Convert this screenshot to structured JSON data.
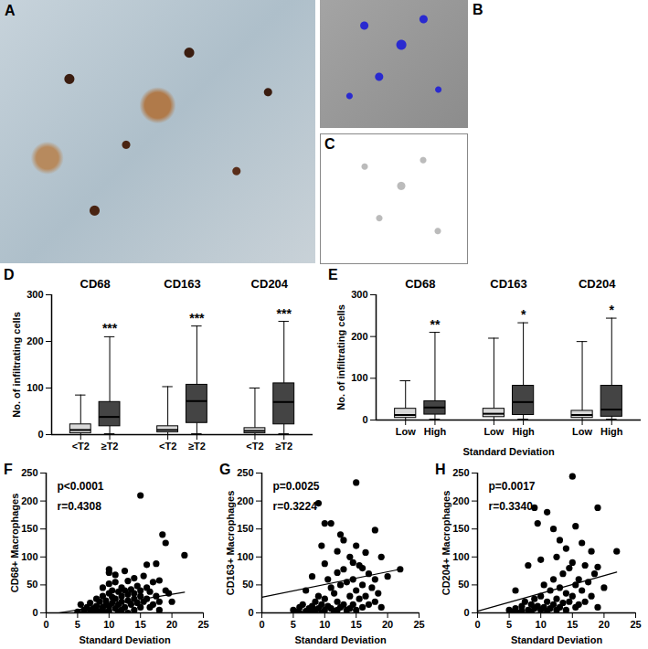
{
  "chart_data": [
    {
      "type": "image",
      "panel": "A"
    },
    {
      "type": "image",
      "panel": "B"
    },
    {
      "type": "image",
      "panel": "C"
    },
    {
      "type": "box",
      "panel": "D",
      "ylabel": "No. of infiltrating cells",
      "ylim": [
        0,
        300
      ],
      "yticks": [
        0,
        100,
        200,
        300
      ],
      "categories": [
        "<T2",
        "≥T2"
      ],
      "colors": [
        "#d9d9d9",
        "#444444"
      ],
      "groups": [
        {
          "name": "CD68",
          "boxes": [
            {
              "min": 0,
              "q1": 3,
              "median": 10,
              "q3": 22,
              "max": 85
            },
            {
              "min": 2,
              "q1": 18,
              "median": 38,
              "q3": 70,
              "max": 210,
              "annotation": "***"
            }
          ]
        },
        {
          "name": "CD163",
          "boxes": [
            {
              "min": 0,
              "q1": 5,
              "median": 10,
              "q3": 18,
              "max": 103
            },
            {
              "min": 2,
              "q1": 25,
              "median": 72,
              "q3": 107,
              "max": 233,
              "annotation": "***"
            }
          ]
        },
        {
          "name": "CD204",
          "boxes": [
            {
              "min": 0,
              "q1": 3,
              "median": 8,
              "q3": 14,
              "max": 100
            },
            {
              "min": 2,
              "q1": 22,
              "median": 70,
              "q3": 110,
              "max": 243,
              "annotation": "***"
            }
          ]
        }
      ]
    },
    {
      "type": "box",
      "panel": "E",
      "ylabel": "No. of infiltrating cells",
      "xlabel": "Standard Deviation",
      "ylim": [
        0,
        300
      ],
      "yticks": [
        0,
        100,
        200,
        300
      ],
      "categories": [
        "Low",
        "High"
      ],
      "colors": [
        "#d9d9d9",
        "#444444"
      ],
      "groups": [
        {
          "name": "CD68",
          "boxes": [
            {
              "min": 0,
              "q1": 5,
              "median": 12,
              "q3": 27,
              "max": 94
            },
            {
              "min": 2,
              "q1": 13,
              "median": 30,
              "q3": 45,
              "max": 210,
              "annotation": "**"
            }
          ]
        },
        {
          "name": "CD163",
          "boxes": [
            {
              "min": 0,
              "q1": 7,
              "median": 15,
              "q3": 27,
              "max": 196
            },
            {
              "min": 2,
              "q1": 12,
              "median": 43,
              "q3": 82,
              "max": 233,
              "annotation": "*"
            }
          ]
        },
        {
          "name": "CD204",
          "boxes": [
            {
              "min": 0,
              "q1": 5,
              "median": 12,
              "q3": 22,
              "max": 188
            },
            {
              "min": 2,
              "q1": 8,
              "median": 25,
              "q3": 82,
              "max": 244,
              "annotation": "*"
            }
          ]
        }
      ]
    },
    {
      "type": "scatter",
      "panel": "F",
      "xlabel": "Standard Deviation",
      "ylabel": "CD68+ Macrophages",
      "xlim": [
        0,
        25
      ],
      "xticks": [
        0,
        5,
        10,
        15,
        20,
        25
      ],
      "ylim": [
        0,
        250
      ],
      "yticks": [
        0,
        50,
        100,
        150,
        200,
        250
      ],
      "color": "#000000",
      "annotations": [
        "p<0.0001",
        "r=0.4308"
      ],
      "trend": [
        [
          2,
          0
        ],
        [
          22,
          37
        ]
      ],
      "points": [
        [
          5,
          2
        ],
        [
          5.5,
          15
        ],
        [
          6,
          5
        ],
        [
          6,
          0
        ],
        [
          6.5,
          10
        ],
        [
          7,
          3
        ],
        [
          7,
          18
        ],
        [
          7.5,
          8
        ],
        [
          7.5,
          0
        ],
        [
          8,
          12
        ],
        [
          8,
          25
        ],
        [
          8,
          5
        ],
        [
          8.5,
          2
        ],
        [
          8.5,
          20
        ],
        [
          9,
          10
        ],
        [
          9,
          30
        ],
        [
          9,
          45
        ],
        [
          9,
          5
        ],
        [
          9.5,
          15
        ],
        [
          9.5,
          22
        ],
        [
          9.5,
          0
        ],
        [
          10,
          78
        ],
        [
          10,
          72
        ],
        [
          10,
          52
        ],
        [
          10,
          35
        ],
        [
          10,
          12
        ],
        [
          10,
          4
        ],
        [
          10.5,
          28
        ],
        [
          10.5,
          18
        ],
        [
          10.5,
          40
        ],
        [
          11,
          68
        ],
        [
          11,
          55
        ],
        [
          11,
          25
        ],
        [
          11,
          8
        ],
        [
          11.5,
          38
        ],
        [
          11.5,
          15
        ],
        [
          11.5,
          2
        ],
        [
          12,
          45
        ],
        [
          12,
          30
        ],
        [
          12,
          20
        ],
        [
          12,
          5
        ],
        [
          12.5,
          75
        ],
        [
          12.5,
          40
        ],
        [
          12.5,
          10
        ],
        [
          13,
          57
        ],
        [
          13,
          33
        ],
        [
          13,
          22
        ],
        [
          13,
          0
        ],
        [
          13.5,
          42
        ],
        [
          13.5,
          15
        ],
        [
          14,
          62
        ],
        [
          14,
          35
        ],
        [
          14,
          25
        ],
        [
          14,
          5
        ],
        [
          14.5,
          48
        ],
        [
          14.5,
          18
        ],
        [
          15,
          210
        ],
        [
          15,
          40
        ],
        [
          15,
          30
        ],
        [
          15,
          10
        ],
        [
          15.5,
          66
        ],
        [
          15.5,
          20
        ],
        [
          16,
          86
        ],
        [
          16,
          45
        ],
        [
          16,
          25
        ],
        [
          16.5,
          38
        ],
        [
          16.5,
          10
        ],
        [
          17,
          55
        ],
        [
          17,
          15
        ],
        [
          17.5,
          88
        ],
        [
          17.5,
          30
        ],
        [
          18,
          58
        ],
        [
          18,
          20
        ],
        [
          18,
          5
        ],
        [
          18.5,
          140
        ],
        [
          19,
          125
        ],
        [
          19,
          40
        ],
        [
          19.5,
          35
        ],
        [
          20,
          20
        ],
        [
          22,
          103
        ]
      ]
    },
    {
      "type": "scatter",
      "panel": "G",
      "xlabel": "Standard Deviation",
      "ylabel": "CD163+ Macrophages",
      "xlim": [
        0,
        25
      ],
      "xticks": [
        0,
        5,
        10,
        15,
        20,
        25
      ],
      "ylim": [
        0,
        250
      ],
      "yticks": [
        0,
        50,
        100,
        150,
        200,
        250
      ],
      "color": "#000000",
      "annotations": [
        "p=0.0025",
        "r=0.3224"
      ],
      "trend": [
        [
          0,
          28
        ],
        [
          22,
          78
        ]
      ],
      "points": [
        [
          5,
          5
        ],
        [
          5.5,
          2
        ],
        [
          6,
          10
        ],
        [
          6,
          0
        ],
        [
          6.5,
          15
        ],
        [
          7,
          3
        ],
        [
          7,
          40
        ],
        [
          7.5,
          8
        ],
        [
          8,
          65
        ],
        [
          8,
          12
        ],
        [
          8,
          2
        ],
        [
          8.5,
          20
        ],
        [
          8.5,
          5
        ],
        [
          9,
          196
        ],
        [
          9,
          30
        ],
        [
          9,
          8
        ],
        [
          9.5,
          120
        ],
        [
          9.5,
          15
        ],
        [
          9.5,
          0
        ],
        [
          10,
          160
        ],
        [
          10,
          88
        ],
        [
          10,
          25
        ],
        [
          10,
          5
        ],
        [
          10.5,
          60
        ],
        [
          10.5,
          12
        ],
        [
          11,
          160
        ],
        [
          11,
          45
        ],
        [
          11,
          8
        ],
        [
          11.5,
          35
        ],
        [
          11.5,
          3
        ],
        [
          12,
          110
        ],
        [
          12,
          72
        ],
        [
          12,
          20
        ],
        [
          12,
          5
        ],
        [
          12.5,
          140
        ],
        [
          12.5,
          50
        ],
        [
          12.5,
          10
        ],
        [
          13,
          130
        ],
        [
          13,
          78
        ],
        [
          13,
          15
        ],
        [
          13.5,
          55
        ],
        [
          13.5,
          5
        ],
        [
          14,
          100
        ],
        [
          14,
          30
        ],
        [
          14,
          8
        ],
        [
          14.5,
          90
        ],
        [
          14.5,
          60
        ],
        [
          14.5,
          15
        ],
        [
          15,
          233
        ],
        [
          15,
          120
        ],
        [
          15,
          40
        ],
        [
          15,
          5
        ],
        [
          15.5,
          85
        ],
        [
          15.5,
          25
        ],
        [
          16,
          80
        ],
        [
          16,
          50
        ],
        [
          16,
          10
        ],
        [
          16.5,
          108
        ],
        [
          16.5,
          30
        ],
        [
          17,
          70
        ],
        [
          17,
          15
        ],
        [
          17.5,
          45
        ],
        [
          18,
          148
        ],
        [
          18,
          60
        ],
        [
          18,
          20
        ],
        [
          18.5,
          35
        ],
        [
          19,
          100
        ],
        [
          19,
          10
        ],
        [
          20,
          65
        ],
        [
          22,
          78
        ]
      ]
    },
    {
      "type": "scatter",
      "panel": "H",
      "xlabel": "Standard Deviation",
      "ylabel": "CD204+ Macrophages",
      "xlim": [
        0,
        25
      ],
      "xticks": [
        0,
        5,
        10,
        15,
        20,
        25
      ],
      "ylim": [
        0,
        250
      ],
      "yticks": [
        0,
        50,
        100,
        150,
        200,
        250
      ],
      "color": "#000000",
      "annotations": [
        "p=0.0017",
        "r=0.3340"
      ],
      "trend": [
        [
          0,
          3
        ],
        [
          22,
          73
        ]
      ],
      "points": [
        [
          5,
          5
        ],
        [
          5.5,
          2
        ],
        [
          6,
          40
        ],
        [
          6,
          8
        ],
        [
          6.5,
          0
        ],
        [
          7,
          12
        ],
        [
          7,
          3
        ],
        [
          7.5,
          20
        ],
        [
          8,
          85
        ],
        [
          8,
          5
        ],
        [
          8.5,
          15
        ],
        [
          8.5,
          2
        ],
        [
          9,
          188
        ],
        [
          9,
          25
        ],
        [
          9,
          8
        ],
        [
          9.5,
          160
        ],
        [
          9.5,
          12
        ],
        [
          10,
          95
        ],
        [
          10,
          30
        ],
        [
          10,
          5
        ],
        [
          10.5,
          50
        ],
        [
          10.5,
          10
        ],
        [
          11,
          180
        ],
        [
          11,
          20
        ],
        [
          11,
          3
        ],
        [
          11.5,
          40
        ],
        [
          11.5,
          8
        ],
        [
          12,
          150
        ],
        [
          12,
          60
        ],
        [
          12,
          15
        ],
        [
          12.5,
          100
        ],
        [
          12.5,
          25
        ],
        [
          12.5,
          5
        ],
        [
          13,
          130
        ],
        [
          13,
          45
        ],
        [
          13,
          10
        ],
        [
          13.5,
          70
        ],
        [
          13.5,
          18
        ],
        [
          14,
          115
        ],
        [
          14,
          35
        ],
        [
          14,
          5
        ],
        [
          14.5,
          80
        ],
        [
          14.5,
          20
        ],
        [
          15,
          244
        ],
        [
          15,
          90
        ],
        [
          15,
          30
        ],
        [
          15.5,
          155
        ],
        [
          15.5,
          50
        ],
        [
          15.5,
          10
        ],
        [
          16,
          60
        ],
        [
          16,
          15
        ],
        [
          16.5,
          125
        ],
        [
          16.5,
          40
        ],
        [
          17,
          85
        ],
        [
          17,
          20
        ],
        [
          17.5,
          55
        ],
        [
          18,
          110
        ],
        [
          18,
          30
        ],
        [
          18.5,
          70
        ],
        [
          19,
          188
        ],
        [
          19,
          82
        ],
        [
          19,
          10
        ],
        [
          20,
          45
        ],
        [
          22,
          110
        ]
      ]
    }
  ]
}
